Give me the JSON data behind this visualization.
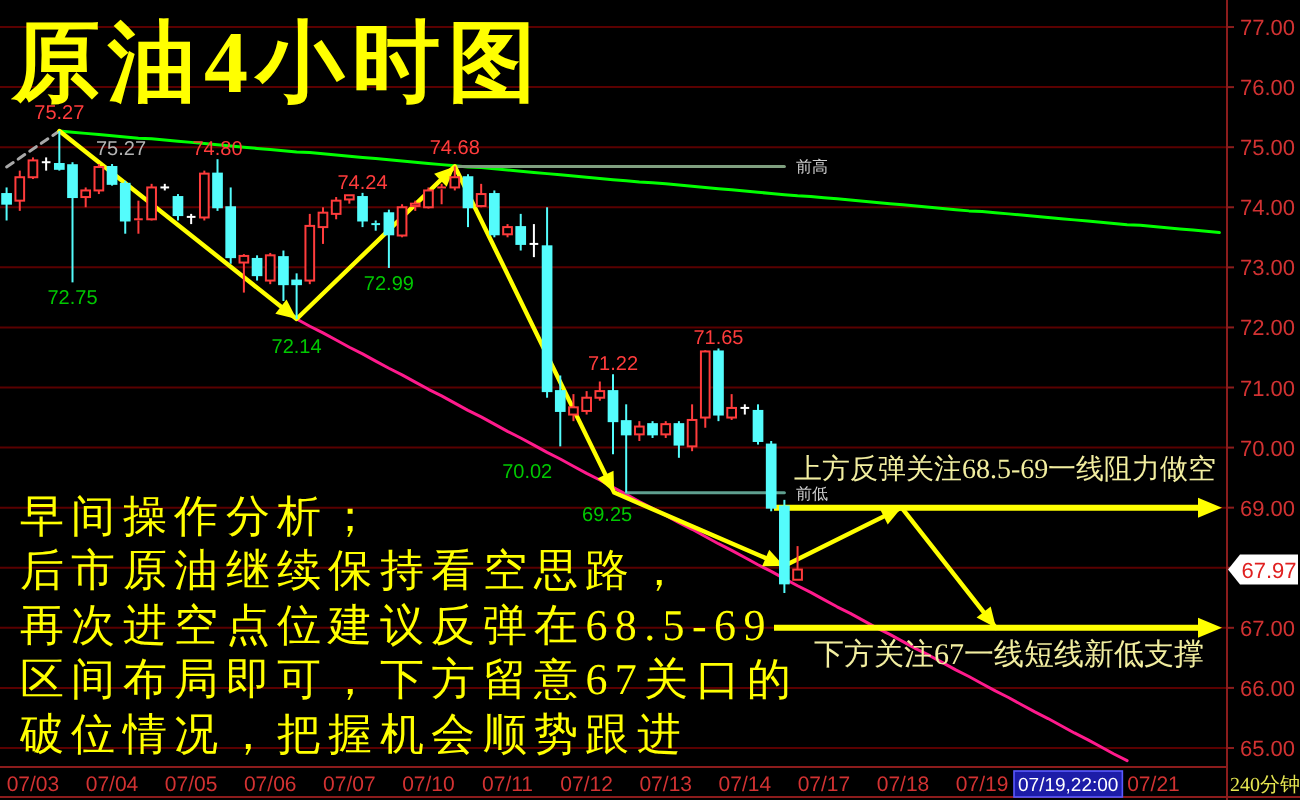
{
  "chart_data": {
    "type": "candlestick",
    "title": "原油4小时图",
    "xlabel": "240分钟",
    "categories": [
      null,
      null,
      "07/03",
      null,
      null,
      null,
      null,
      null,
      "07/04",
      null,
      null,
      null,
      null,
      null,
      "07/05",
      null,
      null,
      null,
      null,
      null,
      "07/06",
      null,
      null,
      null,
      null,
      null,
      "07/07",
      null,
      null,
      null,
      null,
      null,
      "07/10",
      null,
      null,
      null,
      null,
      null,
      "07/11",
      null,
      null,
      null,
      null,
      null,
      "07/12",
      null,
      null,
      null,
      null,
      null,
      "07/13",
      null,
      null,
      null,
      null,
      null,
      "07/14",
      null,
      null,
      null,
      null,
      null,
      "07/17",
      null,
      null,
      null,
      null,
      null,
      "07/18",
      null,
      null,
      null,
      null,
      null,
      "07/19",
      null,
      null,
      null,
      null,
      null,
      null,
      null,
      null,
      null,
      null,
      null,
      null,
      "07/21",
      null,
      null,
      null,
      null,
      null
    ],
    "ohlc": [
      [
        74.22,
        74.33,
        73.78,
        74.06
      ],
      [
        74.11,
        74.61,
        73.94,
        74.5
      ],
      [
        74.5,
        74.83,
        74.47,
        74.78
      ],
      [
        74.75,
        74.83,
        74.61,
        74.75
      ],
      [
        74.72,
        75.27,
        74.61,
        74.64
      ],
      [
        74.7,
        74.75,
        72.75,
        74.17
      ],
      [
        74.17,
        74.33,
        74.0,
        74.28
      ],
      [
        74.28,
        74.72,
        74.22,
        74.67
      ],
      [
        74.67,
        74.72,
        74.36,
        74.39
      ],
      [
        74.39,
        74.44,
        73.56,
        73.78
      ],
      [
        73.78,
        74.11,
        73.56,
        73.8
      ],
      [
        73.8,
        74.39,
        73.78,
        74.33
      ],
      [
        74.33,
        74.39,
        74.28,
        74.33
      ],
      [
        74.17,
        74.22,
        73.78,
        73.87
      ],
      [
        73.84,
        73.89,
        73.72,
        73.84
      ],
      [
        73.83,
        74.61,
        73.78,
        74.56
      ],
      [
        74.56,
        74.8,
        73.94,
        74.0
      ],
      [
        74.0,
        74.33,
        73.06,
        73.17
      ],
      [
        73.08,
        73.22,
        72.58,
        73.19
      ],
      [
        73.14,
        73.2,
        72.78,
        72.87
      ],
      [
        72.78,
        73.24,
        72.72,
        73.2
      ],
      [
        73.17,
        73.28,
        72.44,
        72.72
      ],
      [
        72.78,
        72.9,
        72.14,
        72.72
      ],
      [
        72.78,
        73.89,
        72.72,
        73.69
      ],
      [
        73.67,
        74.0,
        73.39,
        73.91
      ],
      [
        73.89,
        74.17,
        73.8,
        74.11
      ],
      [
        74.13,
        74.2,
        74.06,
        74.2
      ],
      [
        74.17,
        74.24,
        73.67,
        73.78
      ],
      [
        73.74,
        73.78,
        73.61,
        73.72
      ],
      [
        73.9,
        73.96,
        72.99,
        73.55
      ],
      [
        73.53,
        74.05,
        73.5,
        74.0
      ],
      [
        74.02,
        74.11,
        73.94,
        74.06
      ],
      [
        74.0,
        74.33,
        73.98,
        74.28
      ],
      [
        74.3,
        74.39,
        74.05,
        74.33
      ],
      [
        74.33,
        74.68,
        74.28,
        74.5
      ],
      [
        74.5,
        74.55,
        73.67,
        74.0
      ],
      [
        74.02,
        74.39,
        74.0,
        74.22
      ],
      [
        74.22,
        74.28,
        73.5,
        73.55
      ],
      [
        73.55,
        73.72,
        73.5,
        73.67
      ],
      [
        73.67,
        73.89,
        73.28,
        73.39
      ],
      [
        73.39,
        73.72,
        73.17,
        73.39
      ],
      [
        73.35,
        74.0,
        70.83,
        70.94
      ],
      [
        70.94,
        71.2,
        70.02,
        70.61
      ],
      [
        70.55,
        70.89,
        70.44,
        70.67
      ],
      [
        70.61,
        70.94,
        70.55,
        70.83
      ],
      [
        70.83,
        71.1,
        70.78,
        70.94
      ],
      [
        70.94,
        71.22,
        69.89,
        70.44
      ],
      [
        70.44,
        70.72,
        69.25,
        70.22
      ],
      [
        70.22,
        70.44,
        70.11,
        70.35
      ],
      [
        70.39,
        70.44,
        70.16,
        70.22
      ],
      [
        70.22,
        70.44,
        70.16,
        70.39
      ],
      [
        70.39,
        70.44,
        69.83,
        70.05
      ],
      [
        70.02,
        70.72,
        69.94,
        70.46
      ],
      [
        70.5,
        71.62,
        70.33,
        71.6
      ],
      [
        71.6,
        71.65,
        70.44,
        70.55
      ],
      [
        70.5,
        70.89,
        70.46,
        70.66
      ],
      [
        70.66,
        70.72,
        70.55,
        70.66
      ],
      [
        70.61,
        70.72,
        70.05,
        70.11
      ],
      [
        70.05,
        70.11,
        68.94,
        69.0
      ],
      [
        69.02,
        69.13,
        67.58,
        67.74
      ],
      [
        67.8,
        68.36,
        67.8,
        67.97
      ],
      null,
      null,
      null,
      null,
      null,
      null,
      null,
      null,
      null,
      null,
      null,
      null,
      null,
      null,
      null,
      null,
      null,
      null,
      null,
      null,
      null,
      null,
      null,
      null,
      null,
      null,
      null,
      null,
      null,
      null,
      null,
      null
    ],
    "colors": [
      "#54fcfc",
      "#ff3c3c",
      "#ff3c3c",
      "#ffffff",
      "#54fcfc",
      "#54fcfc",
      "#ff3c3c",
      "#ff3c3c",
      "#54fcfc",
      "#54fcfc",
      "#ff3c3c",
      "#ff3c3c",
      "#ffffff",
      "#54fcfc",
      "#ffffff",
      "#ff3c3c",
      "#54fcfc",
      "#54fcfc",
      "#ff3c3c",
      "#54fcfc",
      "#ff3c3c",
      "#54fcfc",
      "#54fcfc",
      "#ff3c3c",
      "#ff3c3c",
      "#ff3c3c",
      "#ff3c3c",
      "#54fcfc",
      "#54fcfc",
      "#54fcfc",
      "#ff3c3c",
      "#ff3c3c",
      "#ff3c3c",
      "#ff3c3c",
      "#ff3c3c",
      "#54fcfc",
      "#ff3c3c",
      "#54fcfc",
      "#ff3c3c",
      "#54fcfc",
      "#ffffff",
      "#54fcfc",
      "#54fcfc",
      "#ff3c3c",
      "#ff3c3c",
      "#ff3c3c",
      "#54fcfc",
      "#54fcfc",
      "#ff3c3c",
      "#54fcfc",
      "#ff3c3c",
      "#54fcfc",
      "#ff3c3c",
      "#ff3c3c",
      "#54fcfc",
      "#ff3c3c",
      "#ffffff",
      "#54fcfc",
      "#54fcfc",
      "#54fcfc",
      "#ff3c3c",
      null,
      null,
      null,
      null,
      null,
      null,
      null,
      null,
      null,
      null,
      null,
      null,
      null,
      null,
      null,
      null,
      null,
      null,
      null,
      null,
      null,
      null,
      null,
      null,
      null,
      null,
      null,
      null,
      null,
      null,
      null,
      null
    ],
    "ylim": [
      64.7,
      77.45
    ],
    "yticks": [
      {
        "value": 65,
        "label": "65.00"
      },
      {
        "value": 66,
        "label": "66.00"
      },
      {
        "value": 67,
        "label": "67.00"
      },
      {
        "value": 68,
        "label": null
      },
      {
        "value": 69,
        "label": "69.00"
      },
      {
        "value": 70,
        "label": "70.00"
      },
      {
        "value": 71,
        "label": "71.00"
      },
      {
        "value": 72,
        "label": "72.00"
      },
      {
        "value": 73,
        "label": "73.00"
      },
      {
        "value": 74,
        "label": "74.00"
      },
      {
        "value": 75,
        "label": "75.00"
      },
      {
        "value": 76,
        "label": "76.00"
      },
      {
        "value": 77,
        "label": "77.00"
      }
    ],
    "grid": "y",
    "series": [
      {
        "type": "line",
        "color": "#00ff00",
        "values": [
          null,
          null,
          null,
          null,
          75.27,
          75.25,
          75.23,
          75.21,
          75.19,
          75.17,
          75.15,
          75.14,
          75.12,
          75.1,
          75.08,
          75.06,
          75.04,
          75.02,
          75.0,
          74.98,
          74.96,
          74.94,
          74.92,
          74.91,
          74.89,
          74.87,
          74.85,
          74.83,
          74.81,
          74.79,
          74.77,
          74.75,
          74.73,
          74.71,
          74.69,
          74.67,
          74.66,
          74.64,
          74.62,
          74.6,
          74.58,
          74.56,
          74.54,
          74.52,
          74.5,
          74.48,
          74.46,
          74.44,
          74.42,
          74.41,
          74.39,
          74.37,
          74.35,
          74.33,
          74.31,
          74.29,
          74.27,
          74.25,
          74.23,
          74.21,
          74.19,
          74.18,
          74.16,
          74.14,
          74.12,
          74.1,
          74.08,
          74.06,
          74.04,
          74.02,
          74.0,
          73.98,
          73.96,
          73.94,
          73.93,
          73.91,
          73.89,
          73.87,
          73.85,
          73.83,
          73.81,
          73.79,
          73.77,
          73.75,
          73.73,
          73.71,
          73.7,
          73.68,
          73.66,
          73.64,
          73.62,
          73.6,
          73.58
        ]
      },
      {
        "type": "line",
        "color": "#ff1a8c",
        "values": [
          null,
          null,
          null,
          null,
          null,
          null,
          null,
          null,
          null,
          null,
          null,
          null,
          null,
          null,
          null,
          null,
          null,
          null,
          null,
          null,
          null,
          null,
          72.14,
          72.02,
          71.91,
          71.79,
          71.67,
          71.56,
          71.44,
          71.32,
          71.21,
          71.09,
          70.97,
          70.86,
          70.74,
          70.62,
          70.51,
          70.39,
          70.27,
          70.16,
          70.04,
          69.92,
          69.81,
          69.69,
          69.57,
          69.46,
          69.34,
          69.22,
          69.1,
          68.99,
          68.87,
          68.75,
          68.64,
          68.52,
          68.4,
          68.29,
          68.17,
          68.05,
          67.94,
          67.82,
          67.7,
          67.59,
          67.47,
          67.35,
          67.24,
          67.12,
          67.0,
          66.89,
          66.77,
          66.65,
          66.54,
          66.42,
          66.3,
          66.19,
          66.07,
          65.95,
          65.84,
          65.72,
          65.6,
          65.49,
          65.37,
          65.25,
          65.14,
          65.02,
          64.9,
          64.79,
          null,
          null,
          null,
          null,
          null,
          null,
          null
        ]
      },
      {
        "type": "line",
        "color": "#a8a8a8",
        "line_style": "dashed",
        "values": [
          74.67,
          74.82,
          74.97,
          75.12,
          75.27,
          null,
          null,
          null,
          null,
          null,
          null,
          null,
          null,
          null,
          null,
          null,
          null,
          null,
          null,
          null,
          null,
          null,
          null,
          null,
          null,
          null,
          null,
          null,
          null,
          null,
          null,
          null,
          null,
          null,
          null,
          null,
          null,
          null,
          null,
          null,
          null,
          null,
          null,
          null,
          null,
          null,
          null,
          null,
          null,
          null,
          null,
          null,
          null,
          null,
          null,
          null,
          null,
          null,
          null,
          null,
          null,
          null,
          null,
          null,
          null,
          null,
          null,
          null,
          null,
          null,
          null,
          null,
          null,
          null,
          null,
          null,
          null,
          null,
          null,
          null,
          null,
          null,
          null,
          null,
          null,
          null,
          null,
          null,
          null,
          null,
          null,
          null,
          null
        ]
      },
      {
        "type": "line",
        "name": "前高",
        "color": "#7f9f7f",
        "values": [
          null,
          null,
          null,
          null,
          null,
          null,
          null,
          null,
          null,
          null,
          null,
          null,
          null,
          null,
          null,
          null,
          null,
          null,
          null,
          null,
          null,
          null,
          null,
          null,
          null,
          null,
          null,
          null,
          null,
          null,
          null,
          null,
          null,
          null,
          74.68,
          74.68,
          74.68,
          74.68,
          74.68,
          74.68,
          74.68,
          74.68,
          74.68,
          74.68,
          74.68,
          74.68,
          74.68,
          74.68,
          74.68,
          74.68,
          74.68,
          74.68,
          74.68,
          74.68,
          74.68,
          74.68,
          74.68,
          74.68,
          74.68,
          74.68,
          null,
          null,
          null,
          null,
          null,
          null,
          null,
          null,
          null,
          null,
          null,
          null,
          null,
          null,
          null,
          null,
          null,
          null,
          null,
          null,
          null,
          null,
          null,
          null,
          null,
          null,
          null,
          null,
          null,
          null,
          null,
          null,
          null
        ]
      },
      {
        "type": "line",
        "name": "前低",
        "color": "#5f9f8f",
        "values": [
          null,
          null,
          null,
          null,
          null,
          null,
          null,
          null,
          null,
          null,
          null,
          null,
          null,
          null,
          null,
          null,
          null,
          null,
          null,
          null,
          null,
          null,
          null,
          null,
          null,
          null,
          null,
          null,
          null,
          null,
          null,
          null,
          null,
          null,
          null,
          null,
          null,
          null,
          null,
          null,
          null,
          null,
          null,
          null,
          null,
          null,
          null,
          69.25,
          69.25,
          69.25,
          69.25,
          69.25,
          69.25,
          69.25,
          69.25,
          69.25,
          69.25,
          69.25,
          69.25,
          69.25,
          null,
          null,
          null,
          null,
          null,
          null,
          null,
          null,
          null,
          null,
          null,
          null,
          null,
          null,
          null,
          null,
          null,
          null,
          null,
          null,
          null,
          null,
          null,
          null,
          null,
          null,
          null,
          null,
          null,
          null,
          null,
          null,
          null
        ]
      }
    ],
    "ref_lines": [
      {
        "axis": "y",
        "value": 69,
        "label": "上方反弹关注68.5-69一线阻力做空",
        "color": "#ffff00"
      },
      {
        "axis": "y",
        "value": 67,
        "label": "下方关注67一线短线新低支撑",
        "color": "#ffff00"
      }
    ],
    "annotations": [
      "早间操作分析；",
      "后市原油继续保持看空思路，",
      "再次进空点位建议反弹在68.5-69",
      "区间布局即可，下方留意67关口的",
      "破位情况，把握机会顺势跟进",
      "07/19,22:00",
      "67.97",
      "75.27",
      {
        "text": "75.27",
        "y": 75.27
      },
      {
        "text": "72.75",
        "y": 72.75
      },
      {
        "text": "74.80",
        "y": 74.8
      },
      {
        "text": "72.14",
        "y": 72.14
      },
      {
        "text": "74.24",
        "y": 74.24
      },
      {
        "text": "72.99",
        "y": 72.99
      },
      {
        "text": "74.68",
        "y": 74.68
      },
      {
        "text": "70.02",
        "y": 70.02
      },
      {
        "text": "71.22",
        "y": 71.22
      },
      {
        "text": "69.25",
        "y": 69.25
      },
      {
        "text": "71.65",
        "y": 71.65
      }
    ]
  }
}
